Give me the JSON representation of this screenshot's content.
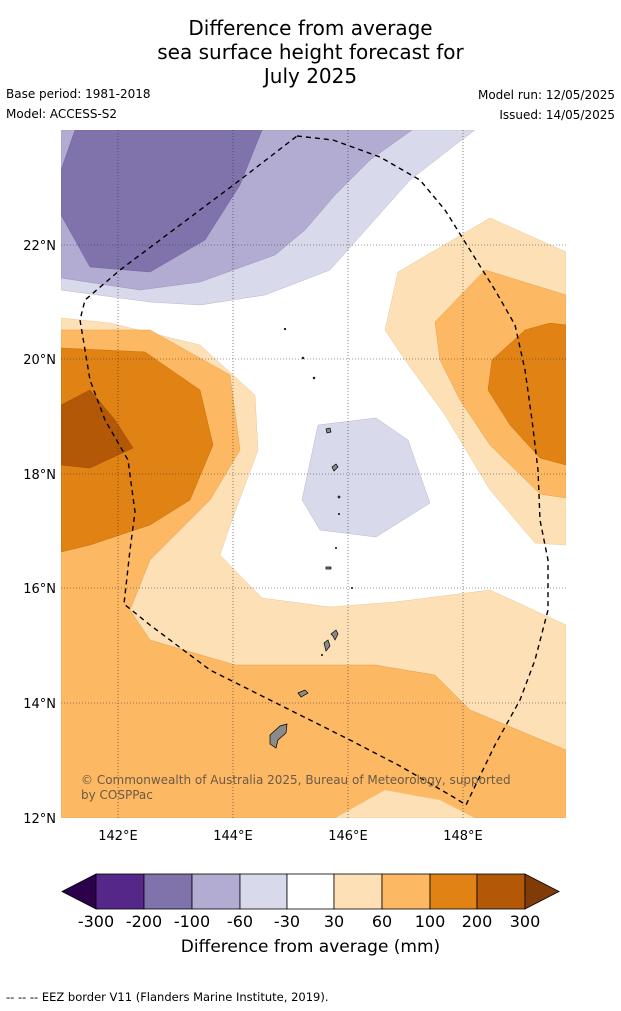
{
  "title": {
    "line1": "Difference from average",
    "line2": "sea surface height forecast for",
    "line3": "July 2025"
  },
  "meta": {
    "base_period": "Base period: 1981-2018",
    "model": "Model: ACCESS-S2",
    "model_run": "Model run: 12/05/2025",
    "issued": "Issued: 14/05/2025"
  },
  "map": {
    "lat_ticks": [
      "22°N",
      "20°N",
      "18°N",
      "16°N",
      "14°N",
      "12°N"
    ],
    "lon_ticks": [
      "142°E",
      "144°E",
      "146°E",
      "148°E"
    ],
    "copyright_line1": "© Commonwealth of Australia 2025, Bureau of Meteorology, supported",
    "copyright_line2": "by COSPPac",
    "icons": [
      "island-icon",
      "eez-border-icon"
    ]
  },
  "colorbar": {
    "labels": [
      "-300",
      "-200",
      "-100",
      "-60",
      "-30",
      "30",
      "60",
      "100",
      "200",
      "300"
    ],
    "colors": [
      "#2d004b",
      "#542788",
      "#8073ac",
      "#b2abd2",
      "#d8daeb",
      "#ffffff",
      "#fee0b6",
      "#fdb863",
      "#e08214",
      "#b35806",
      "#7f3b08"
    ],
    "title": "Difference from average (mm)"
  },
  "footnote": "--  --  -- EEZ border V11 (Flanders Marine Institute, 2019)."
}
